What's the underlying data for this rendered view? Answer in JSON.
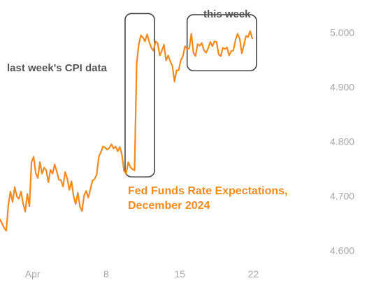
{
  "chart_data": {
    "type": "line",
    "series_color": "#f28a1e",
    "subtitle_lines": [
      "Fed Funds Rate Expectations,",
      "December 2024"
    ],
    "annotations": [
      {
        "text": "last week's CPI data"
      },
      {
        "text": "this week"
      }
    ],
    "y_axis": {
      "position": "right",
      "range": [
        4.54,
        5.06
      ],
      "ticks": [
        {
          "value": 5.0,
          "label": "5.000"
        },
        {
          "value": 4.9,
          "label": "4.900"
        },
        {
          "value": 4.8,
          "label": "4.800"
        },
        {
          "value": 4.7,
          "label": "4.700"
        },
        {
          "value": 4.6,
          "label": "4.600"
        }
      ]
    },
    "x_axis": {
      "range": [
        -2.1,
        24.5
      ],
      "ticks": [
        {
          "value": 1,
          "label": "Apr"
        },
        {
          "value": 8,
          "label": "8"
        },
        {
          "value": 15,
          "label": "15"
        },
        {
          "value": 22,
          "label": "22"
        }
      ]
    },
    "highlight_ranges": [
      {
        "x": [
          9.8,
          12.6
        ],
        "y": [
          4.735,
          5.035
        ]
      },
      {
        "x": [
          15.7,
          22.3
        ],
        "y": [
          4.93,
          5.033
        ]
      }
    ],
    "x": [
      -2.1,
      -1.9,
      -1.7,
      -1.5,
      -1.3,
      -1.1,
      -0.9,
      -0.7,
      -0.5,
      -0.3,
      -0.1,
      0.1,
      0.3,
      0.5,
      0.7,
      0.9,
      1.1,
      1.3,
      1.5,
      1.7,
      1.9,
      2.1,
      2.3,
      2.5,
      2.7,
      2.9,
      3.1,
      3.3,
      3.5,
      3.7,
      3.9,
      4.1,
      4.3,
      4.5,
      4.7,
      4.9,
      5.1,
      5.3,
      5.5,
      5.7,
      5.9,
      6.1,
      6.3,
      6.5,
      6.7,
      6.9,
      7.1,
      7.3,
      7.5,
      7.7,
      7.9,
      8.1,
      8.3,
      8.5,
      8.7,
      8.9,
      9.1,
      9.3,
      9.5,
      9.7,
      9.9,
      10.1,
      10.3,
      10.5,
      10.7,
      10.9,
      11.1,
      11.3,
      11.5,
      11.7,
      11.9,
      12.1,
      12.3,
      12.5,
      12.7,
      12.9,
      13.1,
      13.3,
      13.5,
      13.7,
      13.9,
      14.1,
      14.3,
      14.5,
      14.7,
      14.9,
      15.1,
      15.3,
      15.5,
      15.7,
      15.9,
      16.1,
      16.3,
      16.5,
      16.7,
      16.9,
      17.1,
      17.3,
      17.5,
      17.7,
      17.9,
      18.1,
      18.3,
      18.5,
      18.7,
      18.9,
      19.1,
      19.3,
      19.5,
      19.7,
      19.9,
      20.1,
      20.3,
      20.5,
      20.7,
      20.9,
      21.1,
      21.3,
      21.5,
      21.7,
      21.9
    ],
    "y": [
      4.657,
      4.649,
      4.641,
      4.636,
      4.684,
      4.708,
      4.689,
      4.716,
      4.699,
      4.695,
      4.708,
      4.686,
      4.671,
      4.704,
      4.681,
      4.762,
      4.772,
      4.742,
      4.733,
      4.762,
      4.741,
      4.752,
      4.747,
      4.725,
      4.748,
      4.741,
      4.758,
      4.745,
      4.73,
      4.729,
      4.717,
      4.744,
      4.732,
      4.711,
      4.727,
      4.699,
      4.685,
      4.706,
      4.681,
      4.672,
      4.701,
      4.709,
      4.697,
      4.712,
      4.728,
      4.731,
      4.739,
      4.772,
      4.781,
      4.791,
      4.789,
      4.785,
      4.788,
      4.795,
      4.787,
      4.791,
      4.782,
      4.79,
      4.776,
      4.746,
      4.741,
      4.762,
      4.753,
      4.749,
      4.747,
      4.943,
      4.978,
      4.995,
      4.991,
      4.984,
      4.997,
      4.983,
      4.972,
      4.967,
      4.984,
      4.98,
      4.958,
      4.967,
      4.978,
      4.949,
      4.958,
      4.947,
      4.939,
      4.91,
      4.931,
      4.931,
      4.949,
      4.957,
      4.975,
      4.97,
      4.971,
      4.998,
      4.963,
      4.957,
      4.979,
      4.976,
      4.981,
      4.968,
      4.963,
      4.971,
      4.983,
      4.975,
      4.984,
      4.983,
      4.96,
      4.957,
      4.972,
      4.97,
      4.973,
      4.958,
      4.966,
      4.967,
      4.986,
      4.998,
      4.989,
      4.962,
      4.977,
      4.994,
      4.992,
      5.003,
      4.989
    ]
  }
}
